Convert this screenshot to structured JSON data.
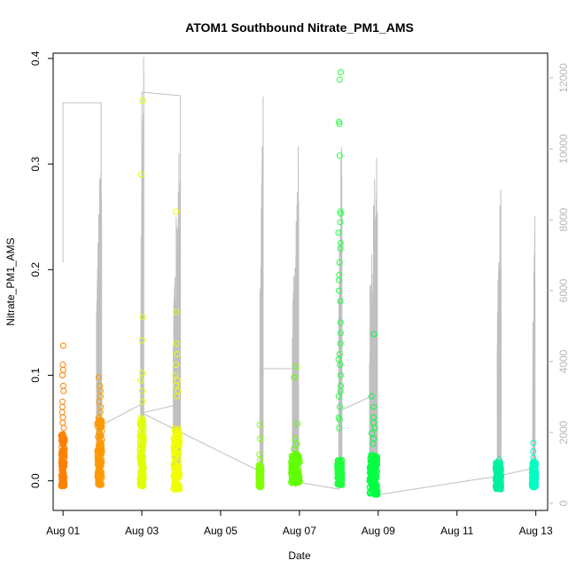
{
  "chart_data": {
    "type": "scatter",
    "title": "ATOM1 Southbound Nitrate_PM1_AMS",
    "xlabel": "Date",
    "ylabel": "Nitrate_PM1_AMS",
    "x_ticks": [
      "Aug 01",
      "Aug 03",
      "Aug 05",
      "Aug 07",
      "Aug 09",
      "Aug 11",
      "Aug 13"
    ],
    "y_ticks": [
      "0.0",
      "0.1",
      "0.2",
      "0.3",
      "0.4"
    ],
    "y2_ticks": [
      "0",
      "2000",
      "4000",
      "6000",
      "8000",
      "10000",
      "12000"
    ],
    "xlim_days": [
      0.75,
      13.3
    ],
    "ylim": [
      -0.028,
      0.405
    ],
    "y2lim": [
      -200,
      12700
    ],
    "grid": false,
    "colors": {
      "grey_line": "#c0c0c0",
      "right_axis": "#b8b8b8"
    },
    "series": [
      {
        "day": 1.0,
        "color": "#ff8000",
        "spread": 0.09,
        "base_lo": -0.005,
        "base_hi": 0.045,
        "outliers": [
          0.128,
          0.11,
          0.105,
          0.1,
          0.09,
          0.085,
          0.075,
          0.07,
          0.065,
          0.06,
          0.055,
          0.05
        ]
      },
      {
        "day": 1.93,
        "color": "#ff9900",
        "spread": 0.12,
        "base_lo": -0.004,
        "base_hi": 0.06,
        "outliers": [
          0.098,
          0.09,
          0.085,
          0.08,
          0.075,
          0.07,
          0.065
        ]
      },
      {
        "day": 3.0,
        "color": "#e0ff00",
        "spread": 0.1,
        "base_lo": -0.005,
        "base_hi": 0.06,
        "outliers": [
          0.36,
          0.29,
          0.155,
          0.133,
          0.102,
          0.095,
          0.085,
          0.075
        ]
      },
      {
        "day": 3.88,
        "color": "#f0ff00",
        "spread": 0.16,
        "base_lo": -0.008,
        "base_hi": 0.05,
        "outliers": [
          0.255,
          0.16,
          0.13,
          0.12,
          0.11,
          0.1,
          0.095,
          0.09,
          0.085,
          0.08
        ]
      },
      {
        "day": 6.0,
        "color": "#80ff00",
        "spread": 0.07,
        "base_lo": -0.006,
        "base_hi": 0.015,
        "outliers": [
          0.053,
          0.04,
          0.025,
          0.02
        ]
      },
      {
        "day": 6.9,
        "color": "#60ff00",
        "spread": 0.22,
        "base_lo": -0.002,
        "base_hi": 0.025,
        "outliers": [
          0.108,
          0.098,
          0.054,
          0.04,
          0.035,
          0.03
        ]
      },
      {
        "day": 8.02,
        "color": "#20ff40",
        "spread": 0.12,
        "base_lo": -0.004,
        "base_hi": 0.02,
        "outliers": [
          0.387,
          0.38,
          0.34,
          0.338,
          0.308,
          0.255,
          0.253,
          0.245,
          0.235,
          0.225,
          0.22,
          0.207,
          0.195,
          0.19,
          0.18,
          0.17,
          0.15,
          0.14,
          0.13,
          0.12,
          0.115,
          0.11,
          0.1,
          0.09,
          0.085,
          0.08,
          0.07,
          0.06,
          0.058,
          0.05
        ]
      },
      {
        "day": 8.88,
        "color": "#00ff40",
        "spread": 0.2,
        "base_lo": -0.013,
        "base_hi": 0.025,
        "outliers": [
          0.139,
          0.08,
          0.07,
          0.06,
          0.055,
          0.05,
          0.045,
          0.04,
          0.035
        ]
      },
      {
        "day": 12.05,
        "color": "#00f0a0",
        "spread": 0.14,
        "base_lo": -0.008,
        "base_hi": 0.018,
        "outliers": [
          0.02,
          0.015
        ]
      },
      {
        "day": 12.95,
        "color": "#00ffc0",
        "spread": 0.1,
        "base_lo": -0.006,
        "base_hi": 0.018,
        "outliers": [
          0.036,
          0.028,
          0.022
        ]
      }
    ],
    "grey_bursts": [
      {
        "start": 1.85,
        "end": 1.98,
        "peak": 11300
      },
      {
        "start": 2.97,
        "end": 3.05,
        "peak": 12800
      },
      {
        "start": 3.8,
        "end": 3.98,
        "peak": 11200
      },
      {
        "start": 6.0,
        "end": 6.08,
        "peak": 11700
      },
      {
        "start": 6.82,
        "end": 6.98,
        "peak": 10500
      },
      {
        "start": 8.0,
        "end": 8.08,
        "peak": 11500
      },
      {
        "start": 8.78,
        "end": 8.98,
        "peak": 11300
      },
      {
        "start": 12.02,
        "end": 12.12,
        "peak": 10000
      },
      {
        "start": 12.92,
        "end": 12.98,
        "peak": 8750
      }
    ],
    "grey_track": [
      [
        1.0,
        6800
      ],
      [
        1.0,
        11300
      ],
      [
        1.97,
        11300
      ],
      [
        1.97,
        2200
      ],
      [
        3.0,
        2800
      ],
      [
        3.0,
        11600
      ],
      [
        3.98,
        11500
      ],
      [
        3.98,
        2800
      ],
      [
        3.0,
        2550
      ],
      [
        6.0,
        900
      ],
      [
        6.0,
        3800
      ],
      [
        6.95,
        3800
      ],
      [
        6.95,
        600
      ],
      [
        8.0,
        400
      ],
      [
        8.0,
        2600
      ],
      [
        8.98,
        3100
      ],
      [
        8.98,
        240
      ],
      [
        12.0,
        760
      ],
      [
        12.97,
        1000
      ],
      [
        12.97,
        1300
      ],
      [
        12.9,
        1100
      ]
    ]
  }
}
